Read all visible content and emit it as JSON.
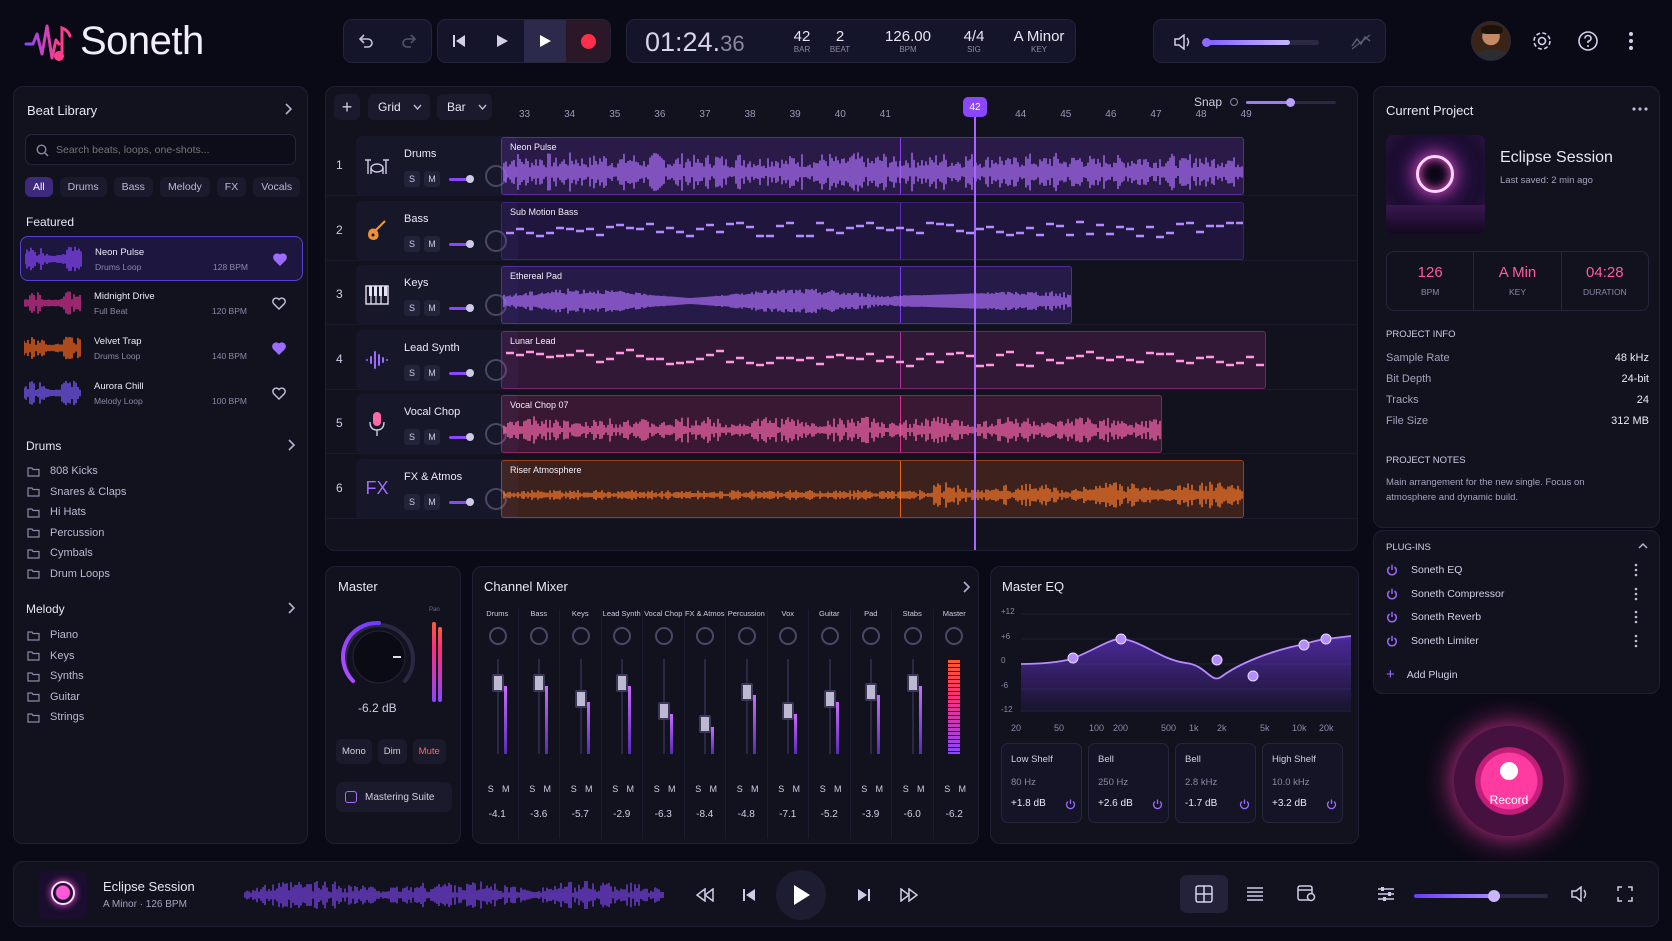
{
  "app": {
    "name": "Soneth"
  },
  "transport": {
    "time_main": "01:24.",
    "time_ms": "36",
    "bar": "42",
    "bar_label": "BAR",
    "beat": "2",
    "beat_label": "BEAT",
    "bpm": "126.00",
    "bpm_label": "BPM",
    "sig": "4/4",
    "sig_label": "SIG",
    "key": "A Minor",
    "key_label": "KEY",
    "volume": 0.75
  },
  "library": {
    "title": "Beat Library",
    "search_placeholder": "Search beats, loops, one-shots...",
    "filters": [
      "All",
      "Drums",
      "Bass",
      "Melody",
      "FX",
      "Vocals"
    ],
    "featured_label": "Featured",
    "featured": [
      {
        "name": "Neon Pulse",
        "type": "Drums Loop",
        "bpm": "128 BPM",
        "liked": true,
        "color": "#8b46ff"
      },
      {
        "name": "Midnight Drive",
        "type": "Full Beat",
        "bpm": "120 BPM",
        "liked": false,
        "color": "#e0339a"
      },
      {
        "name": "Velvet Trap",
        "type": "Drums Loop",
        "bpm": "140 BPM",
        "liked": true,
        "color": "#ff6a1a"
      },
      {
        "name": "Aurora Chill",
        "type": "Melody Loop",
        "bpm": "100 BPM",
        "liked": false,
        "color": "#7b5cff"
      }
    ],
    "drums_label": "Drums",
    "drums": [
      "808 Kicks",
      "Snares & Claps",
      "Hi Hats",
      "Percussion",
      "Cymbals",
      "Drum Loops"
    ],
    "melody_label": "Melody",
    "melody": [
      "Piano",
      "Keys",
      "Synths",
      "Guitar",
      "Strings"
    ]
  },
  "arrange": {
    "grid_label": "Grid",
    "bar_label": "Bar",
    "snap_label": "Snap",
    "ruler": [
      "33",
      "34",
      "35",
      "36",
      "37",
      "38",
      "39",
      "40",
      "41",
      "42",
      "43",
      "44",
      "45",
      "46",
      "47",
      "48",
      "49"
    ],
    "playhead": "42",
    "tracks": [
      {
        "num": "1",
        "name": "Drums",
        "icon": "drum-kit-icon",
        "clip": "Neon Pulse",
        "color": "#8a3cf0"
      },
      {
        "num": "2",
        "name": "Bass",
        "icon": "guitar-icon",
        "clip": "Sub Motion Bass",
        "color": "#5a2ab8"
      },
      {
        "num": "3",
        "name": "Keys",
        "icon": "piano-icon",
        "clip": "Ethereal Pad",
        "color": "#7a3cf0"
      },
      {
        "num": "4",
        "name": "Lead Synth",
        "icon": "waveform-icon",
        "clip": "Lunar Lead",
        "color": "#b0309a"
      },
      {
        "num": "5",
        "name": "Vocal Chop",
        "icon": "microphone-icon",
        "clip": "Vocal Chop 07",
        "color": "#d83088"
      },
      {
        "num": "6",
        "name": "FX & Atmos",
        "icon": "fx-icon",
        "clip": "Riser Atmosphere",
        "color": "#e8601a"
      }
    ],
    "s": "S",
    "m": "M"
  },
  "master": {
    "title": "Master",
    "db": "-6.2 dB",
    "pan_label": "Pan",
    "buttons": [
      "Mono",
      "Dim",
      "Mute"
    ],
    "suite": "Mastering Suite"
  },
  "mixer": {
    "title": "Channel Mixer",
    "channels": [
      {
        "name": "Drums",
        "db": "-4.1"
      },
      {
        "name": "Bass",
        "db": "-3.6"
      },
      {
        "name": "Keys",
        "db": "-5.7"
      },
      {
        "name": "Lead Synth",
        "db": "-2.9"
      },
      {
        "name": "Vocal Chop",
        "db": "-6.3"
      },
      {
        "name": "FX & Atmos",
        "db": "-8.4"
      },
      {
        "name": "Percussion",
        "db": "-4.8"
      },
      {
        "name": "Vox",
        "db": "-7.1"
      },
      {
        "name": "Guitar",
        "db": "-5.2"
      },
      {
        "name": "Pad",
        "db": "-3.9"
      },
      {
        "name": "Stabs",
        "db": "-6.0"
      },
      {
        "name": "Master",
        "db": "-6.2"
      }
    ]
  },
  "eq": {
    "title": "Master EQ",
    "y_ticks": [
      "+12",
      "+6",
      "0",
      "-6",
      "-12"
    ],
    "x_ticks": [
      "20",
      "50",
      "100",
      "200",
      "500",
      "1k",
      "2k",
      "5k",
      "10k",
      "20k"
    ],
    "bands": [
      {
        "type": "Low Shelf",
        "freq": "80 Hz",
        "gain": "+1.8 dB"
      },
      {
        "type": "Bell",
        "freq": "250 Hz",
        "gain": "+2.6 dB"
      },
      {
        "type": "Bell",
        "freq": "2.8 kHz",
        "gain": "-1.7 dB"
      },
      {
        "type": "High Shelf",
        "freq": "10.0 kHz",
        "gain": "+3.2 dB"
      }
    ]
  },
  "project": {
    "section": "Current Project",
    "name": "Eclipse Session",
    "saved": "Last saved: 2 min ago",
    "stats": [
      {
        "v": "126",
        "l": "BPM"
      },
      {
        "v": "A Min",
        "l": "KEY"
      },
      {
        "v": "04:28",
        "l": "DURATION"
      }
    ],
    "info_title": "PROJECT INFO",
    "info": [
      {
        "k": "Sample Rate",
        "v": "48 kHz"
      },
      {
        "k": "Bit Depth",
        "v": "24-bit"
      },
      {
        "k": "Tracks",
        "v": "24"
      },
      {
        "k": "File Size",
        "v": "312 MB"
      }
    ],
    "notes_title": "PROJECT NOTES",
    "notes": "Main arrangement for the new single. Focus on atmosphere and dynamic build.",
    "plugins_title": "PLUG-INS",
    "plugins": [
      "Soneth EQ",
      "Soneth Compressor",
      "Soneth Reverb",
      "Soneth Limiter"
    ],
    "add_plugin": "Add Plugin"
  },
  "record": {
    "label": "Record"
  },
  "player": {
    "title": "Eclipse Session",
    "sub": "A Minor · 126 BPM",
    "volume": 0.6
  }
}
